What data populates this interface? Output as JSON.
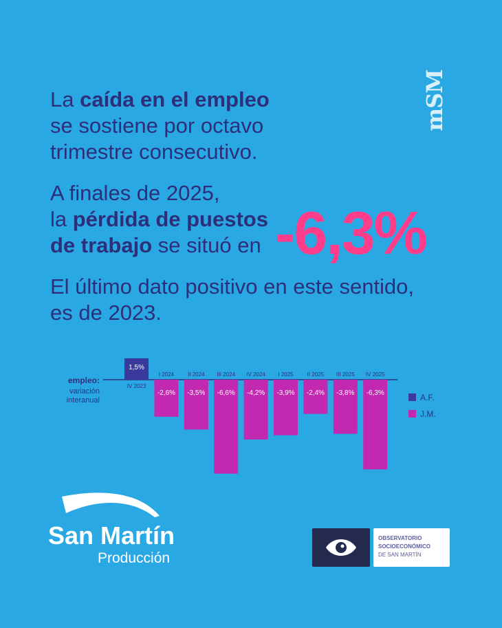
{
  "colors": {
    "background": "#2aa8e4",
    "text": "#2e2f7a",
    "highlight": "#ff3d8a",
    "bar_af": "#3a3a9c",
    "bar_jm": "#c228b0",
    "observatorio_dark": "#232a4d"
  },
  "intro": {
    "p1_a": "La ",
    "p1_b": "caída en el empleo",
    "p1_c": "se sostiene por octavo",
    "p1_d": "trimestre consecutivo.",
    "p2_a": "A finales de 2025,",
    "p2_b": "la ",
    "p2_c": "pérdida de puestos",
    "p2_d": "de trabajo",
    "p2_e": " se situó en",
    "p3_a": "El último dato positivo en este sentido,",
    "p3_b": "es de 2023."
  },
  "highlight_value": "-6,3%",
  "watermark": "mSM",
  "chart_data": {
    "type": "bar",
    "title": "empleo:",
    "subtitle": [
      "variación",
      "interanual"
    ],
    "categories": [
      "IV 2023",
      "I 2024",
      "II 2024",
      "III 2024",
      "IV 2024",
      "I 2025",
      "II 2025",
      "III 2025",
      "IV 2025"
    ],
    "values": [
      1.5,
      -2.6,
      -3.5,
      -6.6,
      -4.2,
      -3.9,
      -2.4,
      -3.8,
      -6.3
    ],
    "labels": [
      "1,5%",
      "-2,6%",
      "-3,5%",
      "-6,6%",
      "-4,2%",
      "-3,9%",
      "-2,4%",
      "-3,8%",
      "-6,3%"
    ],
    "series_group": [
      "A.F.",
      "J.M.",
      "J.M.",
      "J.M.",
      "J.M.",
      "J.M.",
      "J.M.",
      "J.M.",
      "J.M."
    ],
    "legend": [
      {
        "name": "A.F.",
        "color": "#3a3a9c"
      },
      {
        "name": "J.M.",
        "color": "#c228b0"
      }
    ],
    "legend_position": "right",
    "ylim": [
      -6.6,
      1.5
    ]
  },
  "logo": {
    "name": "San Martín",
    "sub": "Producción"
  },
  "observatorio": {
    "line1": "OBSERVATORIO",
    "line2": "SOCIOECONÓMICO",
    "line3": "DE SAN MARTÍN",
    "icon": "eye-icon"
  }
}
